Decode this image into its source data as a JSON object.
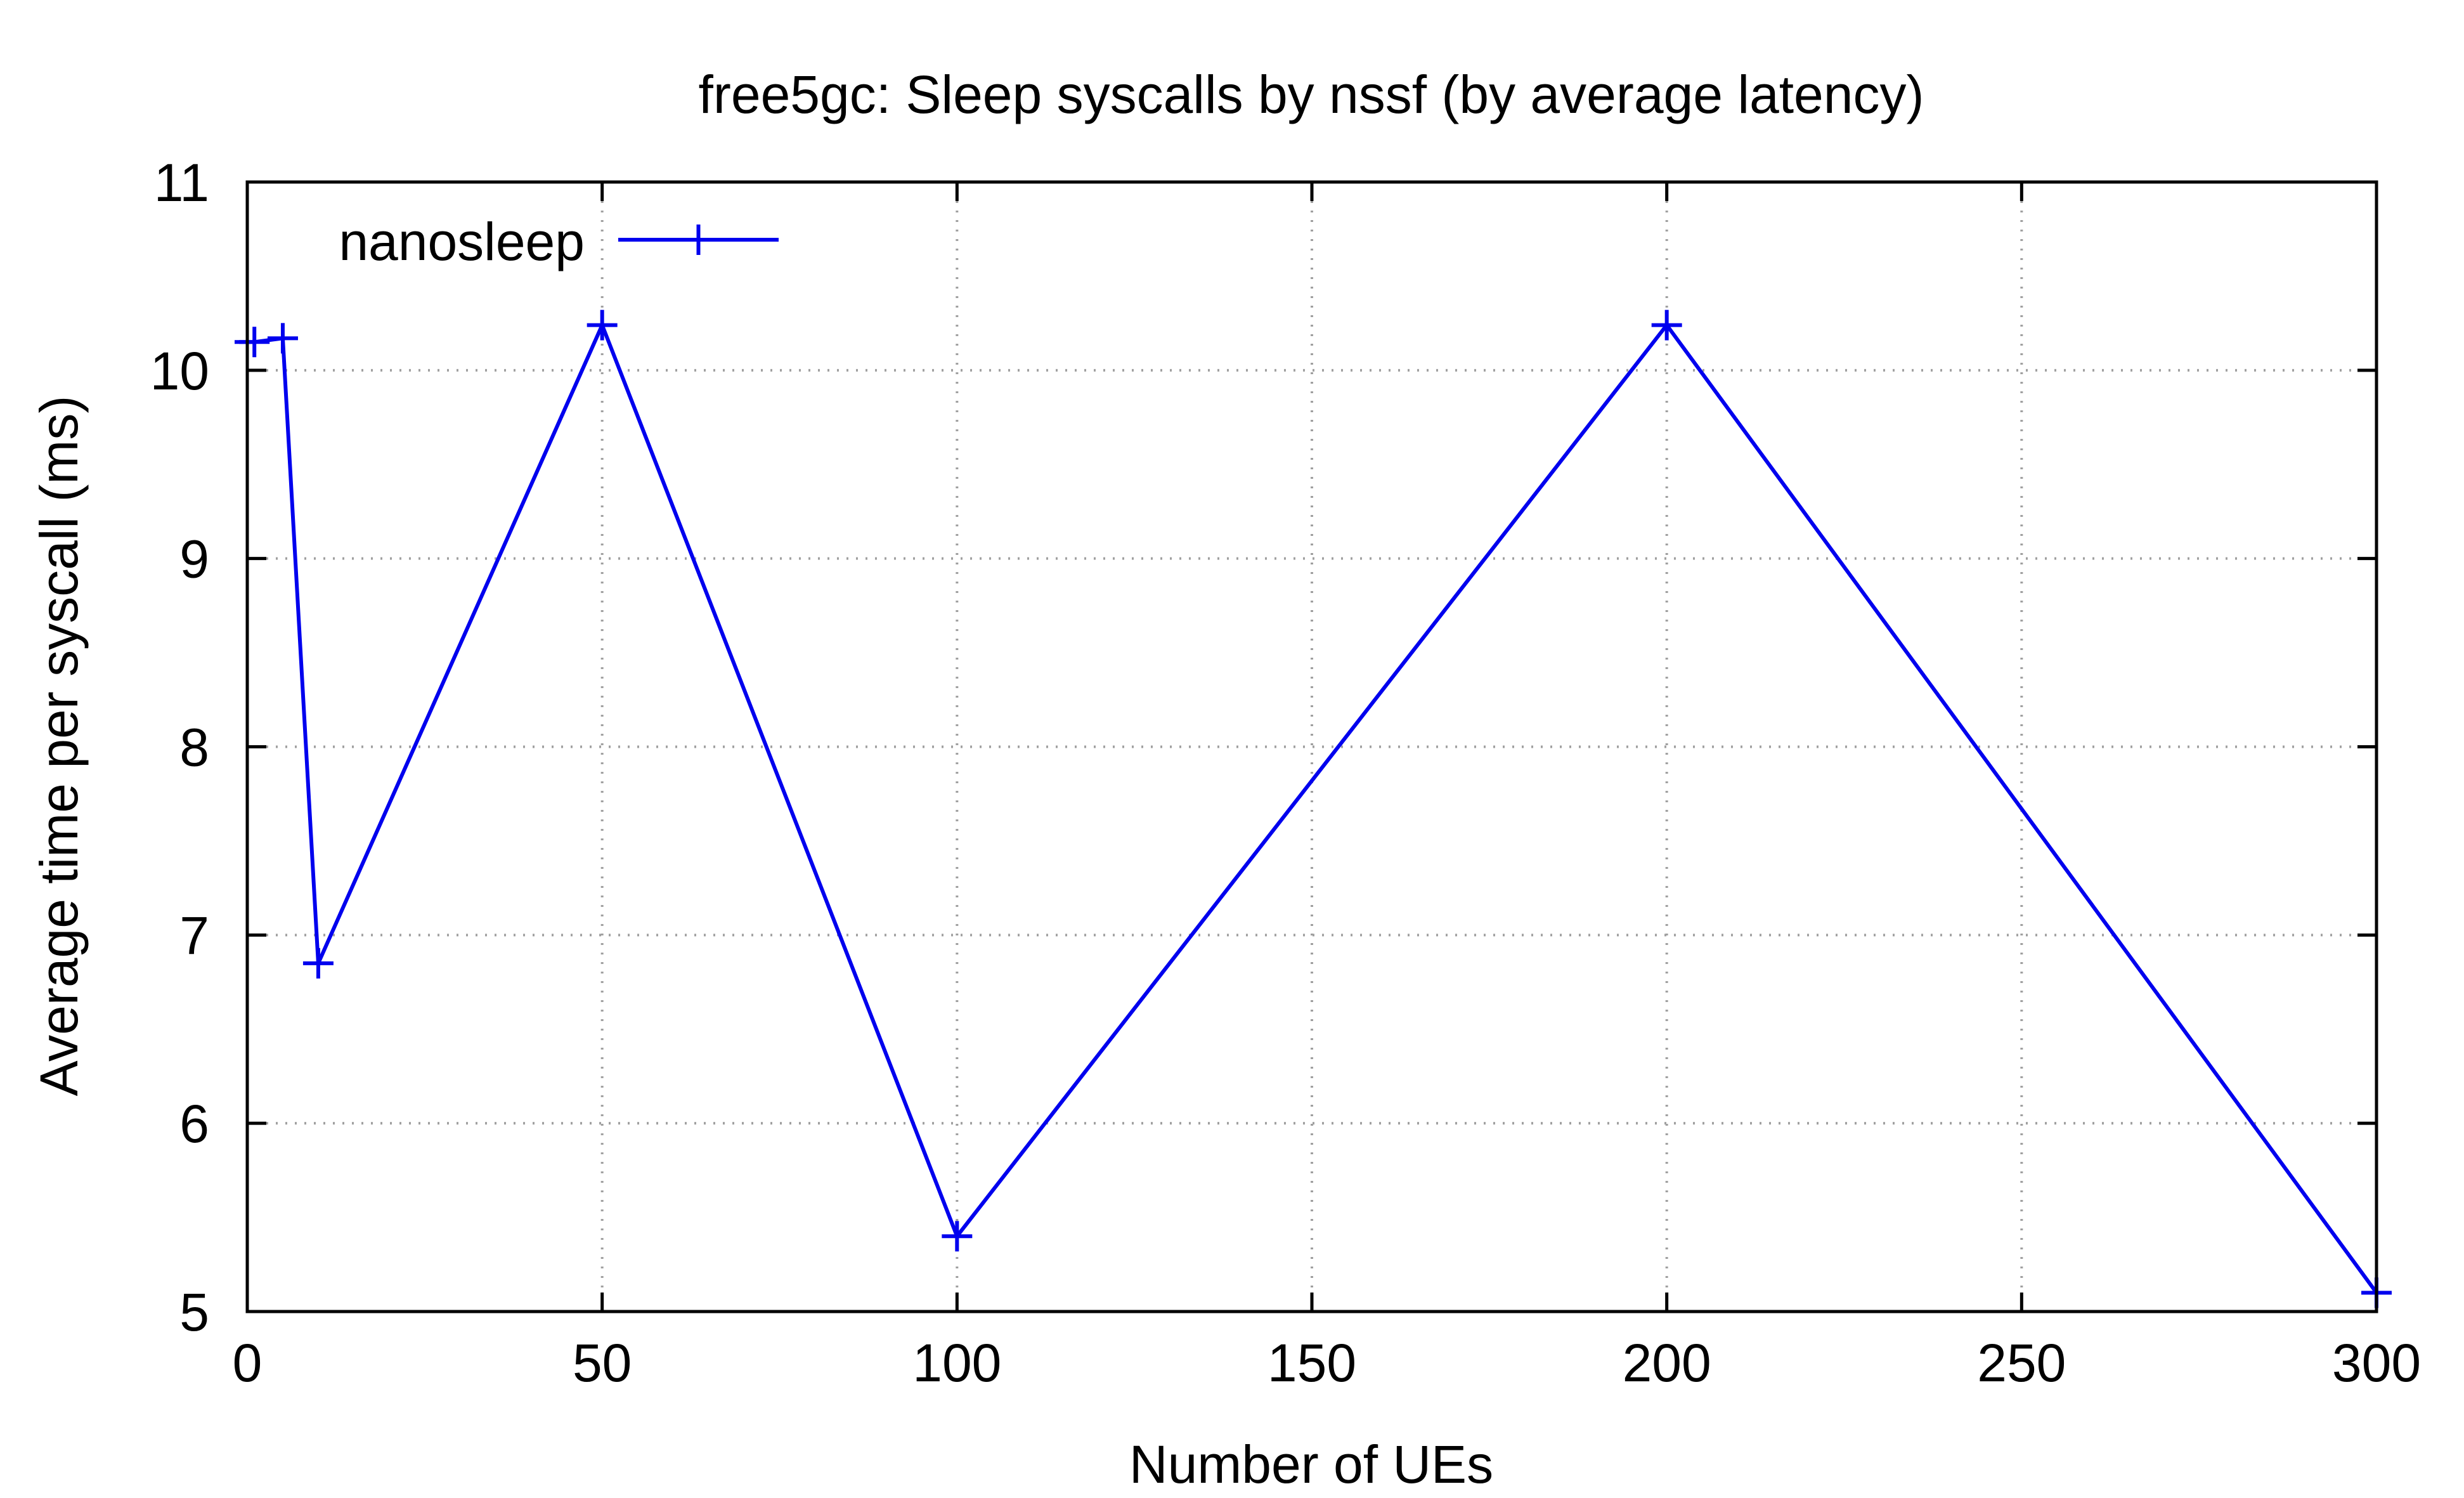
{
  "chart_data": {
    "type": "line",
    "title": "free5gc: Sleep syscalls by nssf (by average latency)",
    "xlabel": "Number of UEs",
    "ylabel": "Average time per syscall (ms)",
    "xlim": [
      0,
      300
    ],
    "ylim": [
      5,
      11
    ],
    "xticks": [
      0,
      50,
      100,
      150,
      200,
      250,
      300
    ],
    "yticks": [
      5,
      6,
      7,
      8,
      9,
      10,
      11
    ],
    "grid": true,
    "grid_style": "dotted",
    "legend_position": "top-left",
    "colors": {
      "series": "#0000ee",
      "axes": "#000000",
      "grid": "#a0a0a0",
      "background": "#ffffff"
    },
    "series": [
      {
        "name": "nanosleep",
        "marker": "plus",
        "x": [
          1,
          5,
          10,
          50,
          100,
          200,
          300
        ],
        "values": [
          10.15,
          10.17,
          6.85,
          10.24,
          5.4,
          10.24,
          5.1
        ]
      }
    ]
  }
}
